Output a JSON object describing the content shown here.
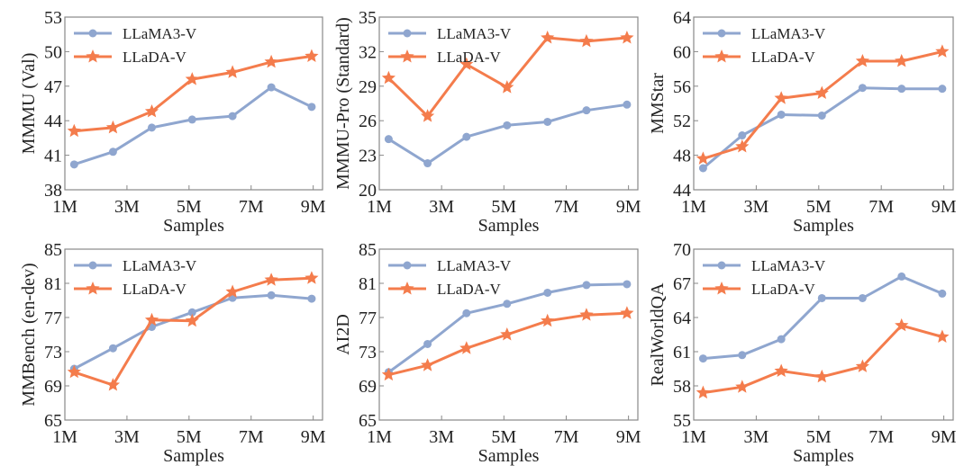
{
  "colors": {
    "LLaMA3-V": "#8fa6cf",
    "LLaDA-V": "#f47c4c",
    "frame": "#888888"
  },
  "chart_data": [
    {
      "type": "line",
      "ylabel": "MMMU (Val)",
      "xlabel": "Samples",
      "xticks": [
        "1M",
        "3M",
        "5M",
        "7M",
        "9M"
      ],
      "xtick_values": [
        1,
        3,
        5,
        7,
        9
      ],
      "xlim": [
        1,
        9.3
      ],
      "ylim": [
        38,
        53
      ],
      "yticks": [
        38,
        41,
        44,
        47,
        50,
        53
      ],
      "legend": "top-left",
      "grid": false,
      "x": [
        1.3,
        2.55,
        3.8,
        5.1,
        6.4,
        7.65,
        8.95
      ],
      "series": [
        {
          "name": "LLaMA3-V",
          "marker": "circle",
          "values": [
            40.2,
            41.3,
            43.4,
            44.1,
            44.4,
            46.9,
            45.2
          ]
        },
        {
          "name": "LLaDA-V",
          "marker": "star",
          "values": [
            43.1,
            43.4,
            44.8,
            47.6,
            48.2,
            49.1,
            49.6
          ]
        }
      ]
    },
    {
      "type": "line",
      "ylabel": "MMMU-Pro (Standard)",
      "xlabel": "Samples",
      "xticks": [
        "1M",
        "3M",
        "5M",
        "7M",
        "9M"
      ],
      "xtick_values": [
        1,
        3,
        5,
        7,
        9
      ],
      "xlim": [
        1,
        9.3
      ],
      "ylim": [
        20,
        35
      ],
      "yticks": [
        20,
        23,
        26,
        29,
        32,
        35
      ],
      "legend": "top-left",
      "grid": false,
      "x": [
        1.3,
        2.55,
        3.8,
        5.1,
        6.4,
        7.65,
        8.95
      ],
      "series": [
        {
          "name": "LLaMA3-V",
          "marker": "circle",
          "values": [
            24.4,
            22.3,
            24.6,
            25.6,
            25.9,
            26.9,
            27.4
          ]
        },
        {
          "name": "LLaDA-V",
          "marker": "star",
          "values": [
            29.7,
            26.4,
            30.9,
            28.9,
            33.2,
            32.9,
            33.2
          ]
        }
      ]
    },
    {
      "type": "line",
      "ylabel": "MMStar",
      "xlabel": "Samples",
      "xticks": [
        "1M",
        "3M",
        "5M",
        "7M",
        "9M"
      ],
      "xtick_values": [
        1,
        3,
        5,
        7,
        9
      ],
      "xlim": [
        1,
        9.3
      ],
      "ylim": [
        44,
        64
      ],
      "yticks": [
        44,
        48,
        52,
        56,
        60,
        64
      ],
      "legend": "top-left",
      "grid": false,
      "x": [
        1.3,
        2.55,
        3.8,
        5.1,
        6.4,
        7.65,
        8.95
      ],
      "series": [
        {
          "name": "LLaMA3-V",
          "marker": "circle",
          "values": [
            46.5,
            50.3,
            52.7,
            52.6,
            55.8,
            55.7,
            55.7
          ]
        },
        {
          "name": "LLaDA-V",
          "marker": "star",
          "values": [
            47.6,
            49.0,
            54.6,
            55.2,
            58.9,
            58.9,
            60.0
          ]
        }
      ]
    },
    {
      "type": "line",
      "ylabel": "MMBench (en-dev)",
      "xlabel": "Samples",
      "xticks": [
        "1M",
        "3M",
        "5M",
        "7M",
        "9M"
      ],
      "xtick_values": [
        1,
        3,
        5,
        7,
        9
      ],
      "xlim": [
        1,
        9.3
      ],
      "ylim": [
        65,
        85
      ],
      "yticks": [
        65,
        69,
        73,
        77,
        81,
        85
      ],
      "legend": "top-left",
      "grid": false,
      "x": [
        1.3,
        2.55,
        3.8,
        5.1,
        6.4,
        7.65,
        8.95
      ],
      "series": [
        {
          "name": "LLaMA3-V",
          "marker": "circle",
          "values": [
            71.0,
            73.4,
            75.9,
            77.6,
            79.3,
            79.6,
            79.2
          ]
        },
        {
          "name": "LLaDA-V",
          "marker": "star",
          "values": [
            70.6,
            69.1,
            76.7,
            76.6,
            80.0,
            81.4,
            81.6
          ]
        }
      ]
    },
    {
      "type": "line",
      "ylabel": "AI2D",
      "xlabel": "Samples",
      "xticks": [
        "1M",
        "3M",
        "5M",
        "7M",
        "9M"
      ],
      "xtick_values": [
        1,
        3,
        5,
        7,
        9
      ],
      "xlim": [
        1,
        9.3
      ],
      "ylim": [
        65,
        85
      ],
      "yticks": [
        65,
        69,
        73,
        77,
        81,
        85
      ],
      "legend": "top-left",
      "grid": false,
      "x": [
        1.3,
        2.55,
        3.8,
        5.1,
        6.4,
        7.65,
        8.95
      ],
      "series": [
        {
          "name": "LLaMA3-V",
          "marker": "circle",
          "values": [
            70.6,
            73.9,
            77.5,
            78.6,
            79.9,
            80.8,
            80.9
          ]
        },
        {
          "name": "LLaDA-V",
          "marker": "star",
          "values": [
            70.3,
            71.4,
            73.4,
            75.0,
            76.6,
            77.3,
            77.5
          ]
        }
      ]
    },
    {
      "type": "line",
      "ylabel": "RealWorldQA",
      "xlabel": "Samples",
      "xticks": [
        "1M",
        "3M",
        "5M",
        "7M",
        "9M"
      ],
      "xtick_values": [
        1,
        3,
        5,
        7,
        9
      ],
      "xlim": [
        1,
        9.3
      ],
      "ylim": [
        55,
        70
      ],
      "yticks": [
        55,
        58,
        61,
        64,
        67,
        70
      ],
      "legend": "top-left",
      "grid": false,
      "x": [
        1.3,
        2.55,
        3.8,
        5.1,
        6.4,
        7.65,
        8.95
      ],
      "series": [
        {
          "name": "LLaMA3-V",
          "marker": "circle",
          "values": [
            60.4,
            60.7,
            62.1,
            65.7,
            65.7,
            67.6,
            66.1
          ]
        },
        {
          "name": "LLaDA-V",
          "marker": "star",
          "values": [
            57.4,
            57.9,
            59.3,
            58.8,
            59.7,
            63.3,
            62.3
          ]
        }
      ]
    }
  ]
}
